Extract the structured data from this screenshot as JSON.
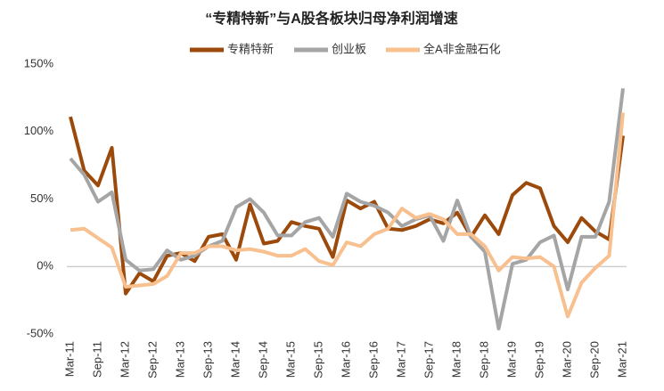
{
  "chart_data": {
    "type": "line",
    "title": "“专精特新”与A股各板块归母净利润增速",
    "categories": [
      "Mar-11",
      null,
      "Sep-11",
      null,
      "Mar-12",
      null,
      "Sep-12",
      null,
      "Mar-13",
      null,
      "Sep-13",
      null,
      "Mar-14",
      null,
      "Sep-14",
      null,
      "Mar-15",
      null,
      "Sep-15",
      null,
      "Mar-16",
      null,
      "Sep-16",
      null,
      "Mar-17",
      null,
      "Sep-17",
      null,
      "Mar-18",
      null,
      "Sep-18",
      null,
      "Mar-19",
      null,
      "Sep-19",
      null,
      "Mar-20",
      null,
      "Sep-20",
      null,
      "Mar-21"
    ],
    "series": [
      {
        "name": "专精特新",
        "color": "#9c4a0c",
        "values": [
          111,
          71,
          60,
          88,
          -20,
          -5,
          -11,
          8,
          10,
          4,
          22,
          24,
          5,
          46,
          17,
          19,
          33,
          30,
          28,
          7,
          49,
          43,
          48,
          28,
          27,
          30,
          35,
          32,
          40,
          22,
          38,
          24,
          53,
          62,
          58,
          30,
          18,
          36,
          26,
          20,
          97
        ]
      },
      {
        "name": "创业板",
        "color": "#a5a5a5",
        "values": [
          80,
          68,
          48,
          55,
          5,
          -3,
          -2,
          12,
          5,
          8,
          15,
          19,
          44,
          50,
          40,
          23,
          23,
          33,
          36,
          22,
          54,
          48,
          45,
          40,
          30,
          35,
          38,
          19,
          49,
          22,
          11,
          -46,
          2,
          5,
          18,
          23,
          -17,
          22,
          22,
          48,
          132
        ]
      },
      {
        "name": "全A非金融石化",
        "color": "#f8c08f",
        "values": [
          27,
          28,
          21,
          14,
          -15,
          -14,
          -13,
          -7,
          10,
          10,
          15,
          15,
          12,
          13,
          11,
          8,
          8,
          13,
          4,
          1,
          18,
          15,
          24,
          28,
          43,
          36,
          39,
          35,
          24,
          24,
          15,
          -3,
          7,
          6,
          7,
          0,
          -37,
          -12,
          -1,
          8,
          114
        ]
      }
    ],
    "ylim": [
      -50,
      150
    ],
    "yticks": [
      {
        "value": -50,
        "label": "-50%"
      },
      {
        "value": 0,
        "label": "0%"
      },
      {
        "value": 50,
        "label": "50%"
      },
      {
        "value": 100,
        "label": "100%"
      },
      {
        "value": 150,
        "label": "150%"
      }
    ],
    "legend": "top"
  }
}
